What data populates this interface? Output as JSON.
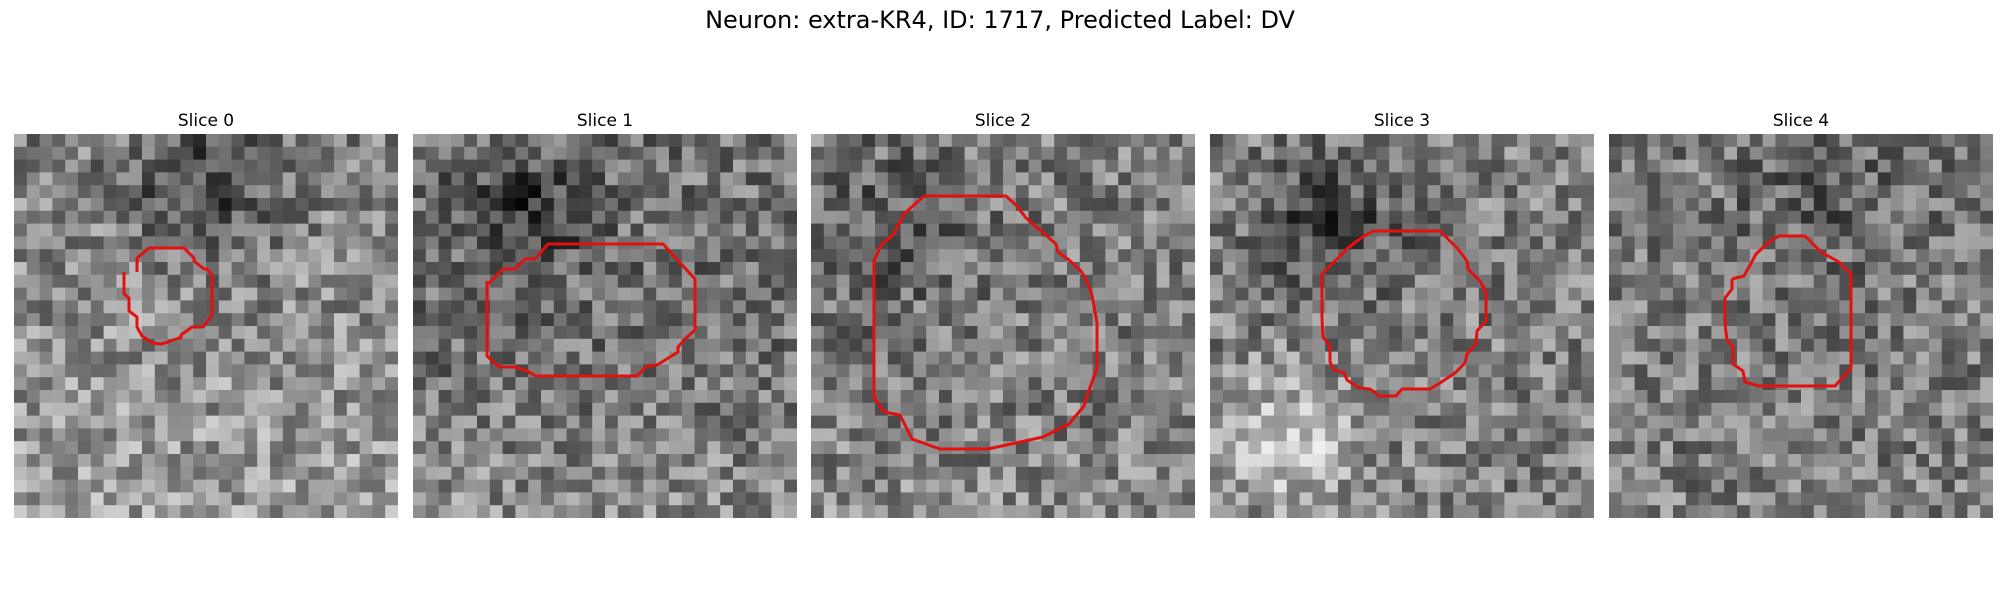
{
  "figure": {
    "title": "Neuron: extra-KR4, ID: 1717, Predicted Label: DV",
    "contour_color": "#e31010",
    "panels": [
      {
        "title": "Slice 0"
      },
      {
        "title": "Slice 1"
      },
      {
        "title": "Slice 2"
      },
      {
        "title": "Slice 3"
      },
      {
        "title": "Slice 4"
      }
    ]
  }
}
